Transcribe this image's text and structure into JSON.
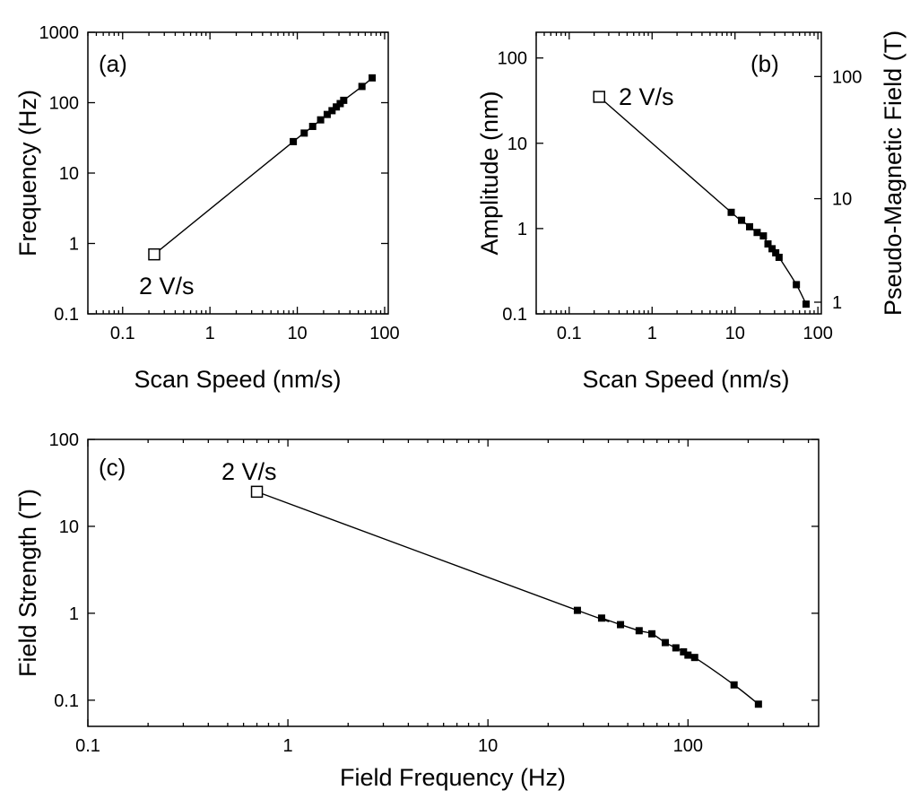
{
  "chart_data": [
    {
      "id": "a",
      "type": "line",
      "panel_label": "(a)",
      "xlabel": "Scan Speed (nm/s)",
      "ylabel": "Frequency (Hz)",
      "xscale": "log",
      "yscale": "log",
      "xlim": [
        0.04,
        110
      ],
      "ylim": [
        0.1,
        1000
      ],
      "xticks": [
        0.1,
        1,
        10,
        100
      ],
      "xtick_labels": [
        "0.1",
        "1",
        "10",
        "100"
      ],
      "yticks": [
        0.1,
        1,
        10,
        100,
        1000
      ],
      "ytick_labels": [
        "0.1",
        "1",
        "10",
        "100",
        "1000"
      ],
      "annotation": "2 V/s",
      "series": [
        {
          "x": [
            0.23,
            9.0,
            12.0,
            15.0,
            18.5,
            22.0,
            25.0,
            28.0,
            31.0,
            34.0,
            55.0,
            72.0
          ],
          "y": [
            0.7,
            28,
            37,
            46,
            57,
            68,
            77,
            87,
            97,
            108,
            170,
            225
          ],
          "marker_open": [
            true,
            false,
            false,
            false,
            false,
            false,
            false,
            false,
            false,
            false,
            false,
            false
          ]
        }
      ]
    },
    {
      "id": "b",
      "type": "line",
      "panel_label": "(b)",
      "xlabel": "Scan Speed (nm/s)",
      "ylabel": "Amplitude (nm)",
      "ylabel_right": "Pseudo-Magnetic Field (T)",
      "xscale": "log",
      "yscale": "log",
      "xlim": [
        0.04,
        110
      ],
      "ylim": [
        0.1,
        200
      ],
      "xticks": [
        0.1,
        1,
        10,
        100
      ],
      "xtick_labels": [
        "0.1",
        "1",
        "10",
        "100"
      ],
      "yticks": [
        0.1,
        1,
        10,
        100
      ],
      "ytick_labels": [
        "0.1",
        "1",
        "10",
        "100"
      ],
      "right_yticks": [
        1,
        10,
        100
      ],
      "right_ytick_labels": [
        "1",
        "10",
        "100"
      ],
      "right_axis_map": [
        [
          0.137,
          1
        ],
        [
          2.24,
          10
        ],
        [
          60.6,
          100
        ]
      ],
      "annotation": "2 V/s",
      "series": [
        {
          "x": [
            0.23,
            9.0,
            12.0,
            15.0,
            18.5,
            22.0,
            25.0,
            28.0,
            31.0,
            34.0,
            55.0,
            72.0
          ],
          "y": [
            35,
            1.55,
            1.25,
            1.05,
            0.9,
            0.82,
            0.66,
            0.58,
            0.52,
            0.46,
            0.22,
            0.13
          ],
          "marker_open": [
            true,
            false,
            false,
            false,
            false,
            false,
            false,
            false,
            false,
            false,
            false,
            false
          ]
        }
      ]
    },
    {
      "id": "c",
      "type": "line",
      "panel_label": "(c)",
      "xlabel": "Field Frequency (Hz)",
      "ylabel": "Field Strength (T)",
      "xscale": "log",
      "yscale": "log",
      "xlim": [
        0.1,
        450
      ],
      "ylim": [
        0.05,
        100
      ],
      "xticks": [
        0.1,
        1,
        10,
        100
      ],
      "xtick_labels": [
        "0.1",
        "1",
        "10",
        "100"
      ],
      "yticks": [
        0.1,
        1,
        10,
        100
      ],
      "ytick_labels": [
        "0.1",
        "1",
        "10",
        "100"
      ],
      "annotation": "2 V/s",
      "series": [
        {
          "x": [
            0.7,
            28,
            37,
            46,
            57,
            66,
            77,
            87,
            95,
            100,
            108,
            170,
            225
          ],
          "y": [
            25,
            1.08,
            0.88,
            0.74,
            0.63,
            0.58,
            0.46,
            0.4,
            0.36,
            0.33,
            0.31,
            0.15,
            0.09
          ],
          "marker_open": [
            true,
            false,
            false,
            false,
            false,
            false,
            false,
            false,
            false,
            false,
            false,
            false,
            false
          ]
        }
      ]
    }
  ]
}
